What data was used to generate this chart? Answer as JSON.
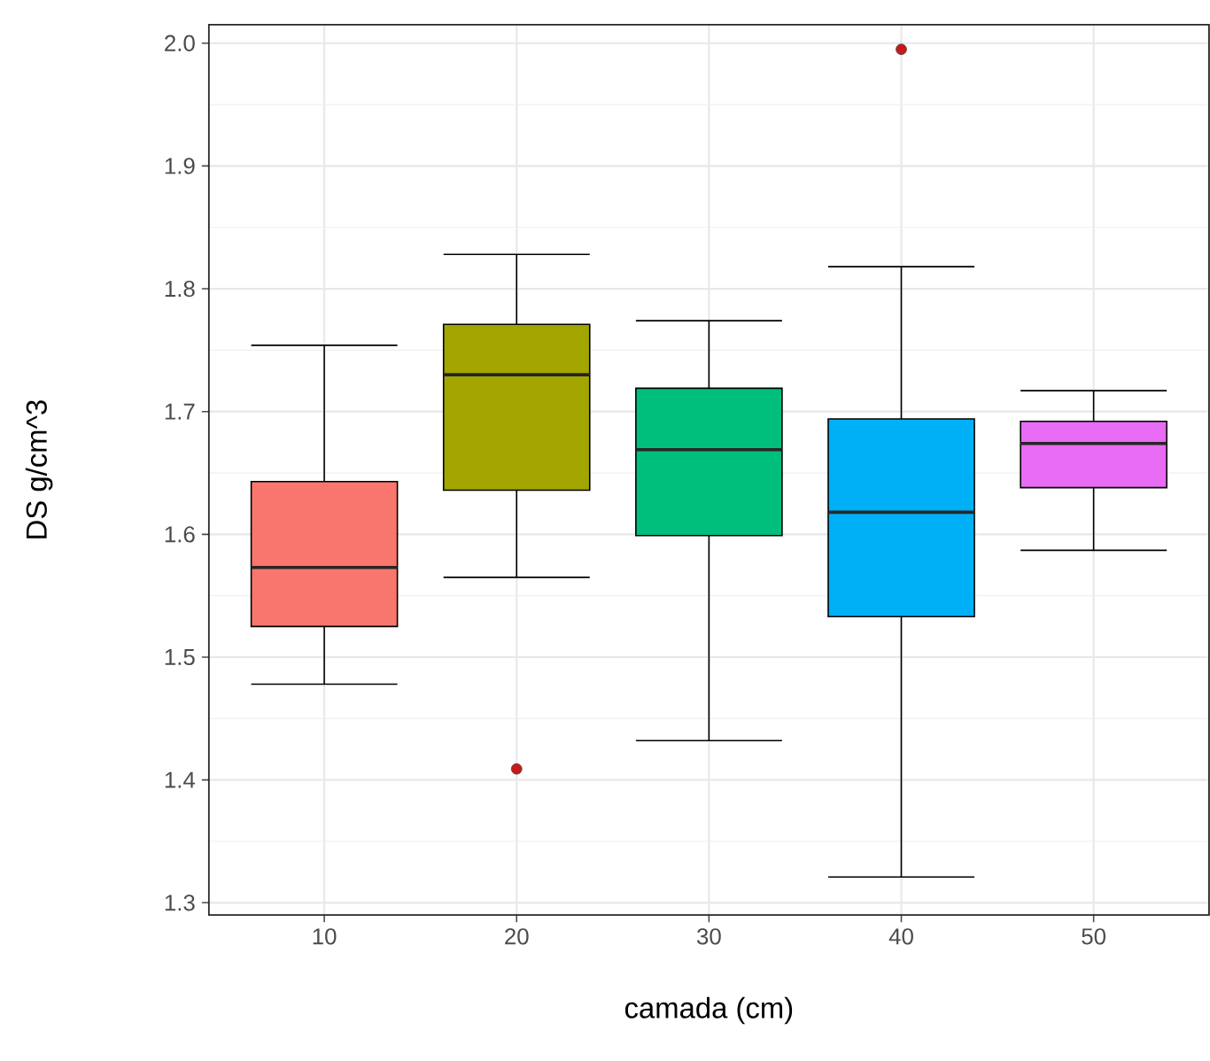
{
  "chart_data": {
    "type": "box",
    "xlabel": "camada (cm)",
    "ylabel": "DS g/cm^3",
    "categories": [
      "10",
      "20",
      "30",
      "40",
      "50"
    ],
    "boxes": [
      {
        "low": 1.478,
        "q1": 1.525,
        "median": 1.573,
        "q3": 1.643,
        "high": 1.754
      },
      {
        "low": 1.565,
        "q1": 1.636,
        "median": 1.73,
        "q3": 1.771,
        "high": 1.828,
        "outliers": [
          1.409
        ]
      },
      {
        "low": 1.432,
        "q1": 1.599,
        "median": 1.669,
        "q3": 1.719,
        "high": 1.774
      },
      {
        "low": 1.321,
        "q1": 1.533,
        "median": 1.618,
        "q3": 1.694,
        "high": 1.818,
        "outliers": [
          1.995
        ]
      },
      {
        "low": 1.587,
        "q1": 1.638,
        "median": 1.674,
        "q3": 1.692,
        "high": 1.717
      }
    ],
    "colors": [
      "#f8766d",
      "#a3a500",
      "#00bf7d",
      "#00b0f6",
      "#e76bf3"
    ],
    "ylim": [
      1.29,
      2.015
    ],
    "yticks": [
      1.3,
      1.4,
      1.5,
      1.6,
      1.7,
      1.8,
      1.9,
      {
        "value": 2.0,
        "label": "2.0"
      }
    ],
    "grid": true
  }
}
